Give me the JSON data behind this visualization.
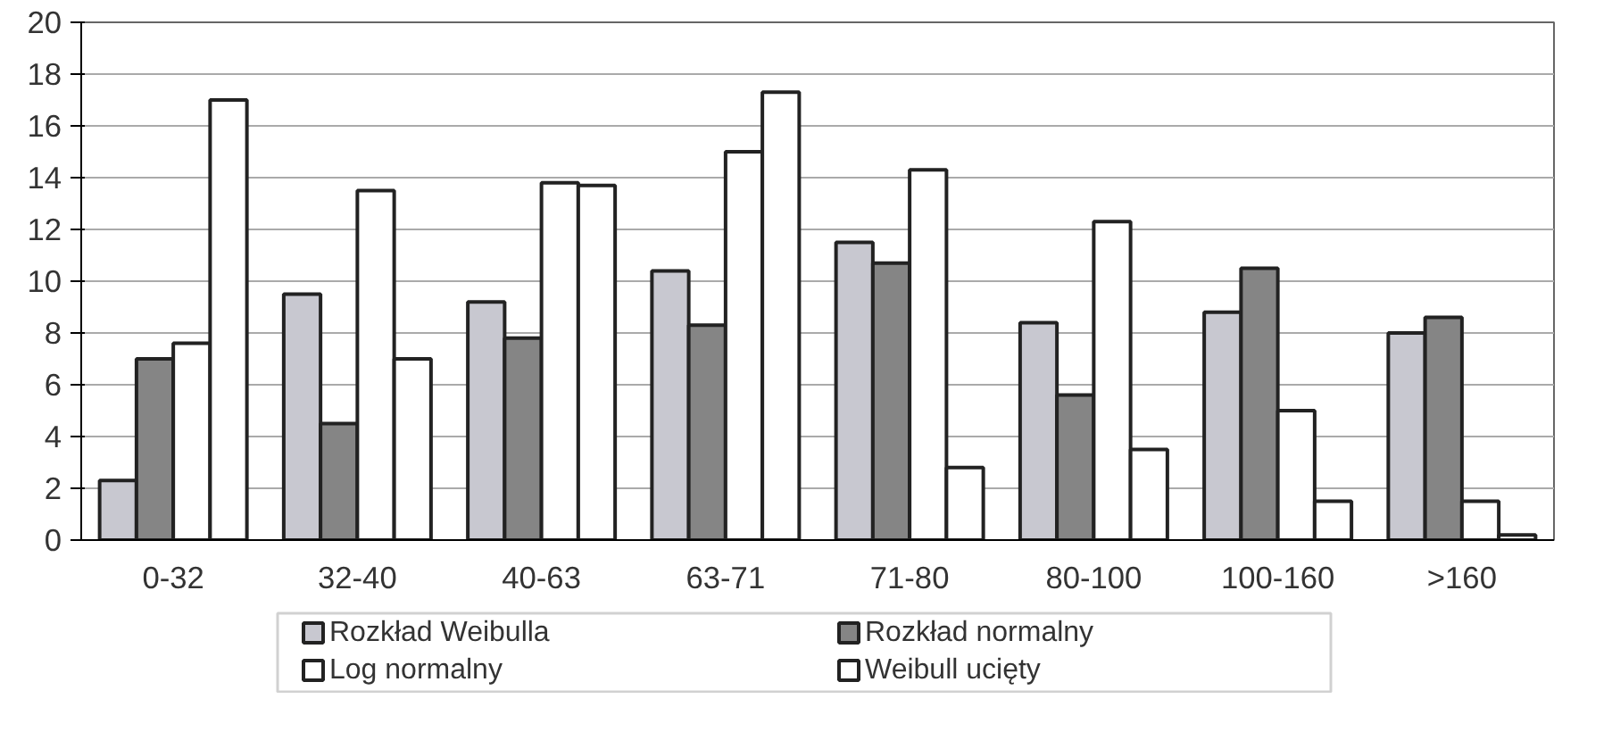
{
  "chart_data": {
    "type": "bar",
    "categories": [
      "0-32",
      "32-40",
      "40-63",
      "63-71",
      "71-80",
      "80-100",
      "100-160",
      ">160"
    ],
    "series": [
      {
        "name": "Rozkład Weibulla",
        "color": "#c8c8d0",
        "values": [
          2.3,
          9.5,
          9.2,
          10.4,
          11.5,
          8.4,
          8.8,
          8.0
        ]
      },
      {
        "name": "Rozkład normalny",
        "color": "#858585",
        "values": [
          7.0,
          4.5,
          7.8,
          8.3,
          10.7,
          5.6,
          10.5,
          8.6
        ]
      },
      {
        "name": "Log normalny",
        "color": "#ffffff",
        "values": [
          7.6,
          13.5,
          13.8,
          15.0,
          14.3,
          12.3,
          5.0,
          1.5
        ]
      },
      {
        "name": "Weibull ucięty",
        "color": "#ffffff",
        "values": [
          17.0,
          7.0,
          13.7,
          17.3,
          2.8,
          3.5,
          1.5,
          0.2
        ]
      }
    ],
    "ylim": [
      0,
      20
    ],
    "yticks": [
      0,
      2,
      4,
      6,
      8,
      10,
      12,
      14,
      16,
      18,
      20
    ],
    "grid": "y",
    "legend": "bottom"
  }
}
